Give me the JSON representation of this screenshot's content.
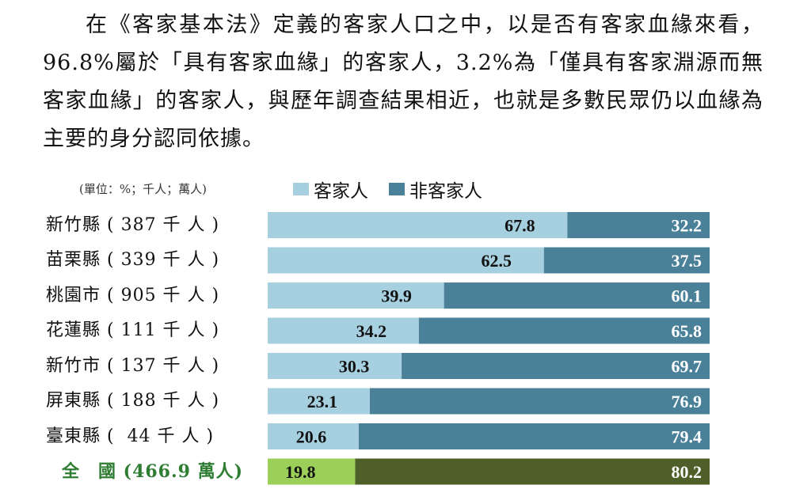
{
  "paragraph": "在《客家基本法》定義的客家人口之中，以是否有客家血緣來看，96.8%屬於「具有客家血緣」的客家人，3.2%為「僅具有客家淵源而無客家血緣」的客家人，與歷年調查結果相近，也就是多數民眾仍以血緣為主要的身分認同依據。",
  "colors": {
    "hakka": "#a6cfdf",
    "non_hakka": "#4a8199",
    "hakka_total": "#9ccf5a",
    "non_hakka_total": "#4f5f2a",
    "total_label": "#2e7d32"
  },
  "chart_data": {
    "type": "bar",
    "stacked": true,
    "orientation": "horizontal",
    "unit_note": "(單位：%；千人；萬人)",
    "legend": [
      "客家人",
      "非客家人"
    ],
    "legend_position": "top",
    "categories": [
      "新竹縣 ( 387 千 人 )",
      "苗栗縣 ( 339 千 人 )",
      "桃園市 ( 905 千 人 )",
      "花蓮縣 ( 111 千 人 )",
      "新竹市 ( 137 千 人 )",
      "屏東縣 ( 188 千 人 )",
      "臺東縣 (  44 千 人 )",
      "全　國 (466.9 萬人)"
    ],
    "series": [
      {
        "name": "客家人",
        "values": [
          67.8,
          62.5,
          39.9,
          34.2,
          30.3,
          23.1,
          20.6,
          19.8
        ]
      },
      {
        "name": "非客家人",
        "values": [
          32.2,
          37.5,
          60.1,
          65.8,
          69.7,
          76.9,
          79.4,
          80.2
        ]
      }
    ],
    "xlim": [
      0,
      100
    ],
    "grid": false
  }
}
